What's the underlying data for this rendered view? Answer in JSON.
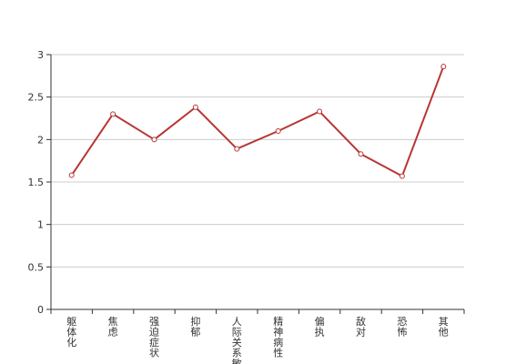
{
  "chart_data": {
    "type": "line",
    "categories": [
      "躯体化",
      "焦虑",
      "强迫症状",
      "抑郁",
      "人际关系敏感",
      "精神病性",
      "偏执",
      "敌对",
      "恐怖",
      "其他"
    ],
    "series": [
      {
        "values": [
          1.58,
          2.3,
          2.0,
          2.38,
          1.89,
          2.1,
          2.33,
          1.83,
          1.57,
          2.86
        ]
      }
    ],
    "ylim": [
      0,
      3
    ],
    "yticks": [
      0,
      0.5,
      1,
      1.5,
      2,
      2.5,
      3
    ],
    "ytick_labels": [
      "0",
      "0.5",
      "1",
      "1.5",
      "2",
      "2.5",
      "3"
    ],
    "grid": "horizontal",
    "legend": "none",
    "line_color": "#b83535",
    "grid_color": "#cccccc",
    "axis_color": "#333333"
  }
}
